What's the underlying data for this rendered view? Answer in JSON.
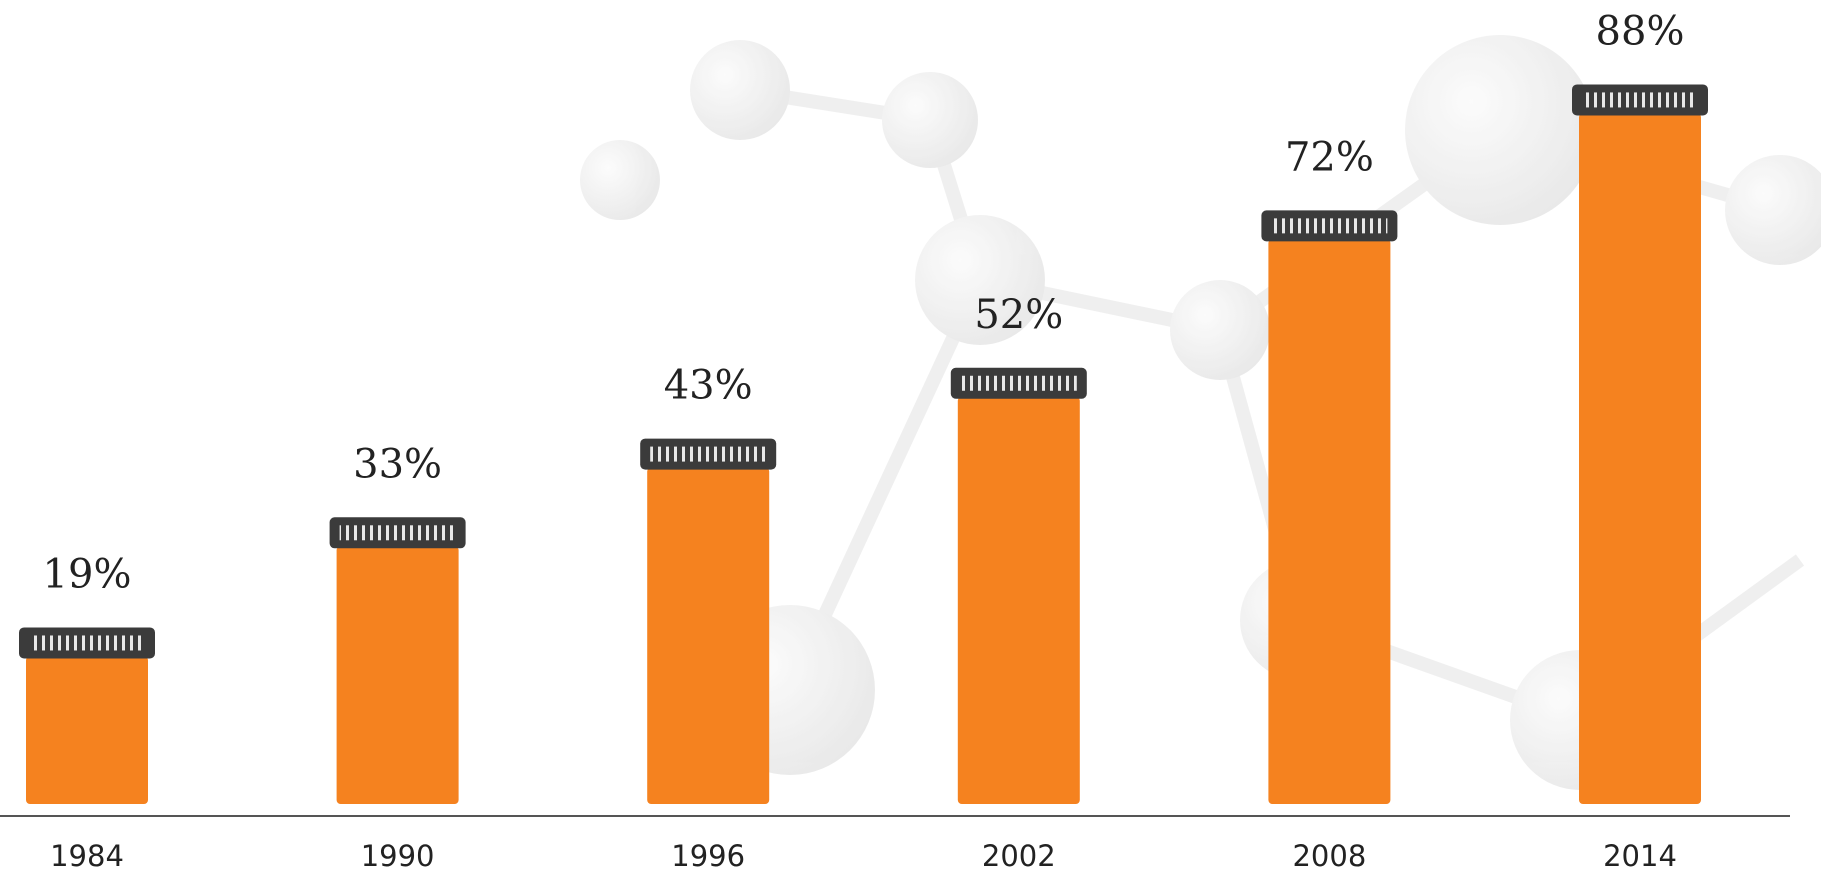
{
  "chart_data": {
    "type": "bar",
    "categories": [
      "1984",
      "1990",
      "1996",
      "2002",
      "2008",
      "2014"
    ],
    "values": [
      19,
      33,
      43,
      52,
      72,
      88
    ],
    "value_labels": [
      "19%",
      "33%",
      "43%",
      "52%",
      "72%",
      "88%"
    ],
    "color": "#f5821f"
  }
}
